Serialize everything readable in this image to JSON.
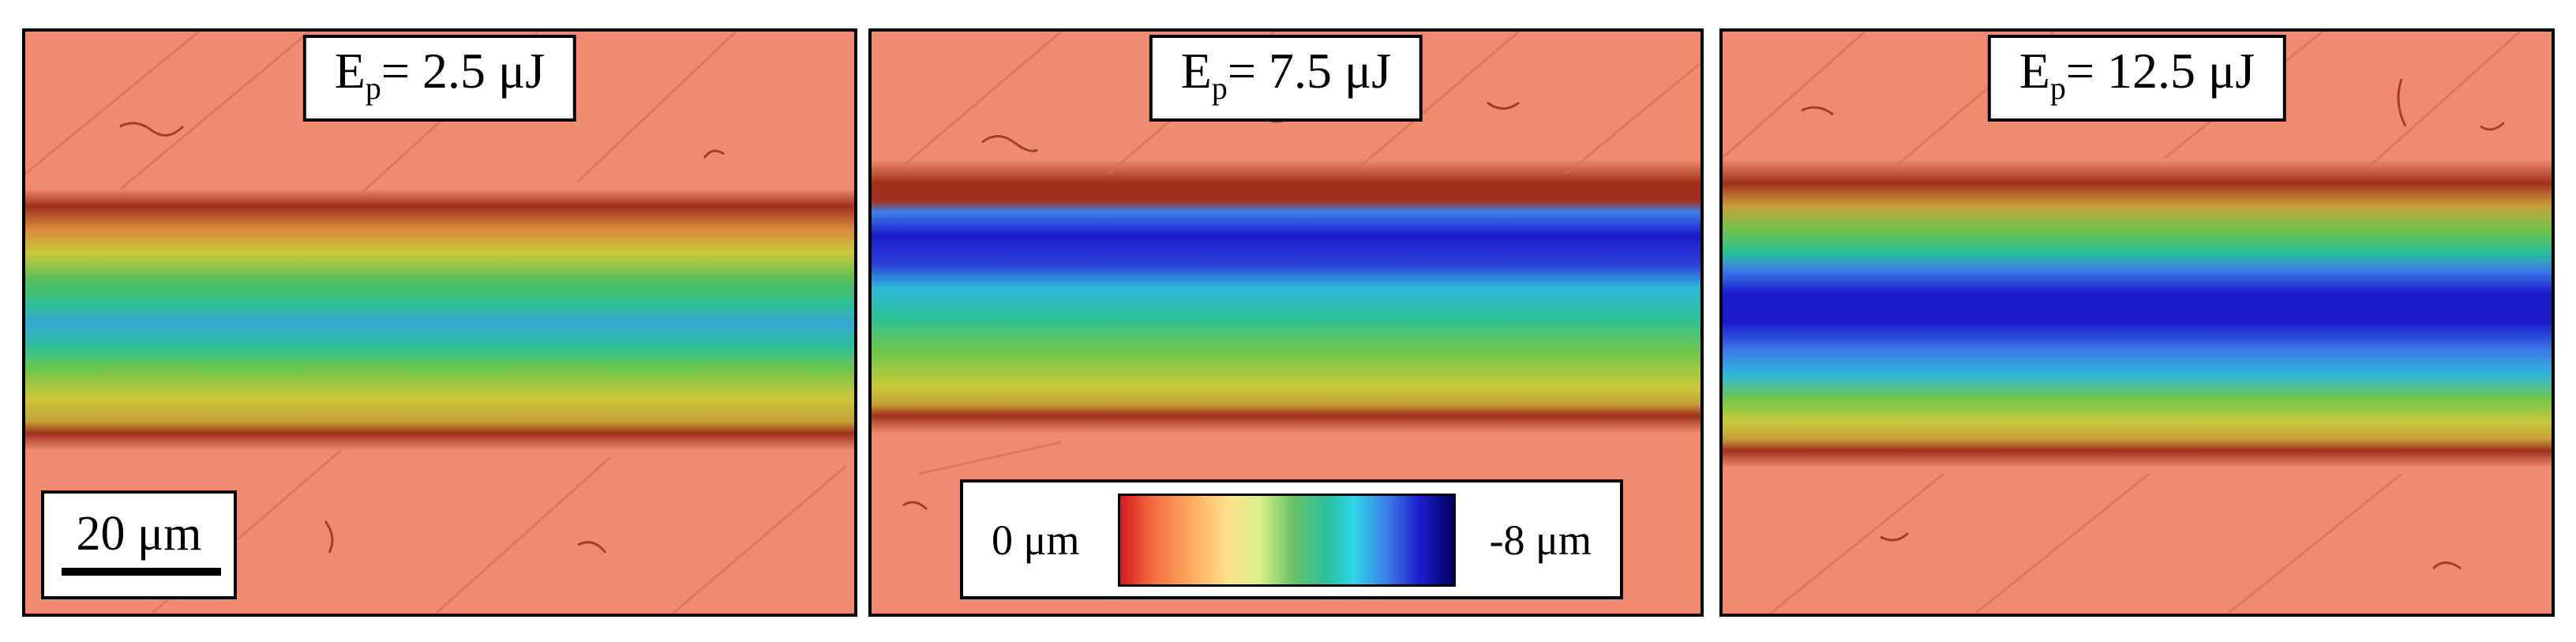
{
  "panels": [
    {
      "id": "panel-1",
      "label_prefix": "E",
      "label_sub": "p",
      "label_value": "= 2.5 μJ",
      "max_depth_um": 4.6
    },
    {
      "id": "panel-2",
      "label_prefix": "E",
      "label_sub": "p",
      "label_value": "= 7.5 μJ",
      "max_depth_um": 7.4
    },
    {
      "id": "panel-3",
      "label_prefix": "E",
      "label_sub": "p",
      "label_value": "= 12.5 μJ",
      "max_depth_um": 7.8
    }
  ],
  "scalebar": {
    "label": "20 μm",
    "length_um": 20
  },
  "colorbar": {
    "min_label": "0 μm",
    "max_label": "-8 μm",
    "min_value_um": 0,
    "max_value_um": -8,
    "colormap": [
      "#d7191c",
      "#f46d43",
      "#fdae61",
      "#fee08b",
      "#d9ef8b",
      "#66c164",
      "#2bbfa0",
      "#2fd6e8",
      "#3b7ee8",
      "#1c1ccc",
      "#000060"
    ]
  },
  "colors": {
    "surface": "#f08a70",
    "rim": "#a0301c"
  }
}
